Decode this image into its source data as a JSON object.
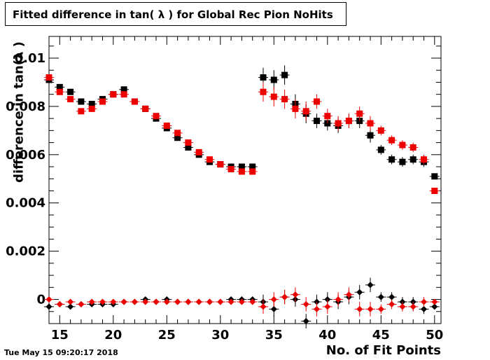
{
  "title": "Fitted difference in tan( λ ) for Global Rec Pion NoHits",
  "timestamp": "Tue May 15 09:20:17 2018",
  "chart_data": {
    "type": "scatter",
    "title": "Fitted difference in tan( λ ) for Global Rec Pion NoHits",
    "xlabel": "No. of Fit Points",
    "ylabel": "difference in tan(λ )",
    "xlim": [
      14,
      50.6
    ],
    "ylim": [
      -0.001,
      0.0109
    ],
    "x_ticks": [
      15,
      20,
      25,
      30,
      35,
      40,
      45,
      50
    ],
    "y_ticks": [
      0,
      0.002,
      0.004,
      0.006,
      0.008,
      0.01
    ],
    "y_tick_labels": [
      "0",
      "0.002",
      "0.004",
      "0.006",
      "0.008",
      "0.01"
    ],
    "grid": false,
    "series": [
      {
        "color": "#000000",
        "marker": "square",
        "x": [
          14,
          15,
          16,
          17,
          18,
          19,
          20,
          21,
          22,
          23,
          24,
          25,
          26,
          27,
          28,
          29,
          30,
          31,
          32,
          33,
          34,
          35,
          36,
          37,
          38,
          39,
          40,
          41,
          42,
          43,
          44,
          45,
          46,
          47,
          48,
          49,
          50
        ],
        "y": [
          0.0091,
          0.0088,
          0.0086,
          0.0082,
          0.0081,
          0.0083,
          0.0085,
          0.0087,
          0.0082,
          0.0079,
          0.0075,
          0.0071,
          0.0067,
          0.0063,
          0.006,
          0.0057,
          0.0056,
          0.0055,
          0.0055,
          0.0055,
          0.0092,
          0.0091,
          0.0093,
          0.0081,
          0.0077,
          0.0074,
          0.0073,
          0.0072,
          0.0074,
          0.0074,
          0.0068,
          0.0062,
          0.0058,
          0.0057,
          0.0058,
          0.0057,
          0.0051
        ],
        "err": [
          0.0001,
          0.0001,
          0.0001,
          0.0001,
          0.0001,
          0.0001,
          0.0001,
          0.0001,
          0.0001,
          0.0001,
          0.0001,
          0.0001,
          0.0001,
          0.0001,
          0.0001,
          0.0001,
          0.0001,
          0.0001,
          0.0001,
          0.0001,
          0.0004,
          0.0004,
          0.0004,
          0.0004,
          0.0004,
          0.0003,
          0.0003,
          0.0003,
          0.0003,
          0.0003,
          0.0003,
          0.0002,
          0.0002,
          0.0002,
          0.0002,
          0.0002,
          0.0001
        ]
      },
      {
        "color": "#ee0000",
        "marker": "square",
        "x": [
          14,
          15,
          16,
          17,
          18,
          19,
          20,
          21,
          22,
          23,
          24,
          25,
          26,
          27,
          28,
          29,
          30,
          31,
          32,
          33,
          34,
          35,
          36,
          37,
          38,
          39,
          40,
          41,
          42,
          43,
          44,
          45,
          46,
          47,
          48,
          49,
          50
        ],
        "y": [
          0.0092,
          0.0086,
          0.0083,
          0.0078,
          0.0079,
          0.0082,
          0.0085,
          0.0085,
          0.0082,
          0.0079,
          0.0076,
          0.0072,
          0.0069,
          0.0065,
          0.0061,
          0.0058,
          0.0056,
          0.0054,
          0.0053,
          0.0053,
          0.0086,
          0.0084,
          0.0083,
          0.0079,
          0.0078,
          0.0082,
          0.0076,
          0.0073,
          0.0074,
          0.0077,
          0.0073,
          0.007,
          0.0066,
          0.0064,
          0.0063,
          0.0058,
          0.0045
        ],
        "err": [
          0.0001,
          0.0001,
          0.0001,
          0.0001,
          0.0001,
          0.0001,
          0.0001,
          0.0001,
          0.0001,
          0.0001,
          0.0001,
          0.0001,
          0.0001,
          0.0001,
          0.0001,
          0.0001,
          0.0001,
          0.0001,
          0.0001,
          0.0001,
          0.0004,
          0.0004,
          0.0004,
          0.0004,
          0.0004,
          0.0003,
          0.0003,
          0.0003,
          0.0003,
          0.0003,
          0.0003,
          0.0002,
          0.0002,
          0.0002,
          0.0002,
          0.0002,
          0.0001
        ]
      },
      {
        "color": "#000000",
        "marker": "diamond",
        "x": [
          14,
          15,
          16,
          17,
          18,
          19,
          20,
          21,
          22,
          23,
          24,
          25,
          26,
          27,
          28,
          29,
          30,
          31,
          32,
          33,
          34,
          35,
          36,
          37,
          38,
          39,
          40,
          41,
          42,
          43,
          44,
          45,
          46,
          47,
          48,
          49,
          50
        ],
        "y": [
          -0.0003,
          -0.0002,
          -0.0003,
          -0.0002,
          -0.0002,
          -0.0002,
          -0.0002,
          -0.0001,
          -0.0001,
          0,
          -0.0001,
          0,
          -0.0001,
          -0.0001,
          -0.0001,
          -0.0001,
          -0.0001,
          0,
          0,
          0,
          -0.0001,
          -0.0004,
          0.0001,
          0,
          -0.0009,
          -0.0001,
          0,
          -0.0001,
          0.0001,
          0.0003,
          0.0006,
          0.0001,
          0.0001,
          -0.0001,
          -0.0001,
          -0.0004,
          -0.0003
        ],
        "err": [
          0.0001,
          0.0001,
          0.0001,
          0.0001,
          0.0001,
          0.0001,
          0.0001,
          0.0001,
          0.0001,
          0.0001,
          0.0001,
          0.0001,
          0.0001,
          0.0001,
          0.0001,
          0.0001,
          0.0001,
          0.0001,
          0.0001,
          0.0001,
          0.0003,
          0.0003,
          0.0003,
          0.0003,
          0.0003,
          0.0003,
          0.0003,
          0.0003,
          0.0003,
          0.0003,
          0.0003,
          0.0002,
          0.0002,
          0.0002,
          0.0002,
          0.0002,
          0.0001
        ]
      },
      {
        "color": "#ee0000",
        "marker": "diamond",
        "x": [
          14,
          15,
          16,
          17,
          18,
          19,
          20,
          21,
          22,
          23,
          24,
          25,
          26,
          27,
          28,
          29,
          30,
          31,
          32,
          33,
          34,
          35,
          36,
          37,
          38,
          39,
          40,
          41,
          42,
          43,
          44,
          45,
          46,
          47,
          48,
          49,
          50
        ],
        "y": [
          0,
          -0.0002,
          -0.0001,
          -0.0002,
          -0.0001,
          -0.0001,
          -0.0001,
          -0.0001,
          -0.0001,
          -0.0001,
          -0.0001,
          -0.0001,
          -0.0001,
          -0.0001,
          -0.0001,
          -0.0001,
          -0.0001,
          -0.0001,
          -0.0001,
          -0.0001,
          -0.0003,
          0,
          0.0001,
          0.0002,
          -0.0002,
          -0.0004,
          -0.0003,
          0,
          0.0002,
          -0.0004,
          -0.0004,
          -0.0004,
          -0.0002,
          -0.0003,
          -0.0003,
          -0.0001,
          -0.0001
        ],
        "err": [
          0.0001,
          0.0001,
          0.0001,
          0.0001,
          0.0001,
          0.0001,
          0.0001,
          0.0001,
          0.0001,
          0.0001,
          0.0001,
          0.0001,
          0.0001,
          0.0001,
          0.0001,
          0.0001,
          0.0001,
          0.0001,
          0.0001,
          0.0001,
          0.0003,
          0.0003,
          0.0003,
          0.0003,
          0.0003,
          0.0003,
          0.0003,
          0.0003,
          0.0003,
          0.0003,
          0.0003,
          0.0002,
          0.0002,
          0.0002,
          0.0002,
          0.0002,
          0.0001
        ]
      }
    ]
  }
}
